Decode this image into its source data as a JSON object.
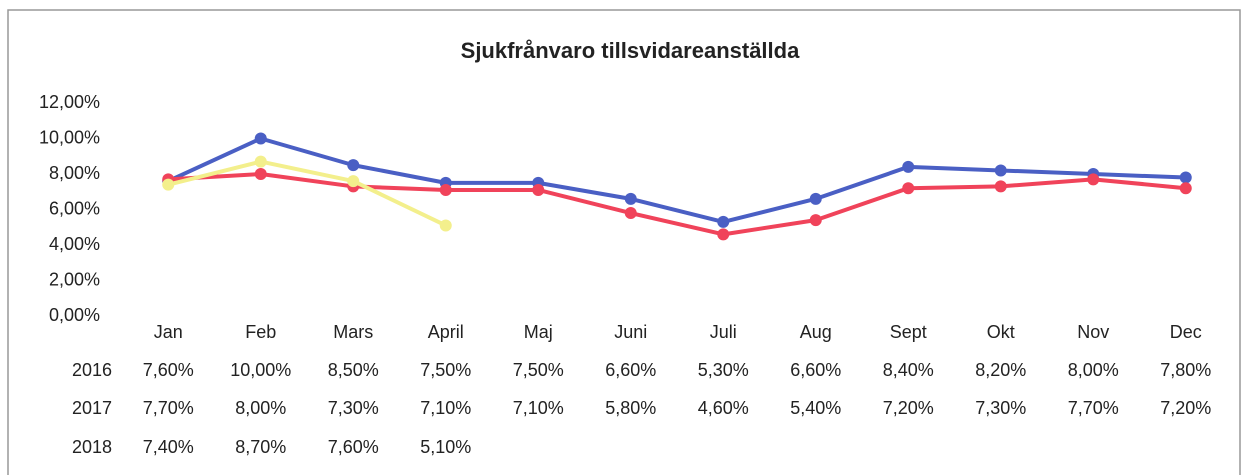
{
  "chart_data": {
    "type": "line",
    "title": "Sjukfrånvaro tillsvidareanställda",
    "categories": [
      "Jan",
      "Feb",
      "Mars",
      "April",
      "Maj",
      "Juni",
      "Juli",
      "Aug",
      "Sept",
      "Okt",
      "Nov",
      "Dec"
    ],
    "series": [
      {
        "name": "2016",
        "color": "#4a5fc4",
        "values": [
          7.6,
          10.0,
          8.5,
          7.5,
          7.5,
          6.6,
          5.3,
          6.6,
          8.4,
          8.2,
          8.0,
          7.8
        ],
        "value_labels": [
          "7,60%",
          "10,00%",
          "8,50%",
          "7,50%",
          "7,50%",
          "6,60%",
          "5,30%",
          "6,60%",
          "8,40%",
          "8,20%",
          "8,00%",
          "7,80%"
        ]
      },
      {
        "name": "2017",
        "color": "#f0435a",
        "values": [
          7.7,
          8.0,
          7.3,
          7.1,
          7.1,
          5.8,
          4.6,
          5.4,
          7.2,
          7.3,
          7.7,
          7.2
        ],
        "value_labels": [
          "7,70%",
          "8,00%",
          "7,30%",
          "7,10%",
          "7,10%",
          "5,80%",
          "4,60%",
          "5,40%",
          "7,20%",
          "7,30%",
          "7,70%",
          "7,20%"
        ]
      },
      {
        "name": "2018",
        "color": "#f3ef8c",
        "values": [
          7.4,
          8.7,
          7.6,
          5.1,
          null,
          null,
          null,
          null,
          null,
          null,
          null,
          null
        ],
        "value_labels": [
          "7,40%",
          "8,70%",
          "7,60%",
          "5,10%",
          null,
          null,
          null,
          null,
          null,
          null,
          null,
          null
        ]
      }
    ],
    "ylim": [
      0,
      12
    ],
    "yticks": [
      {
        "value": 0,
        "label": "0,00%"
      },
      {
        "value": 2,
        "label": "2,00%"
      },
      {
        "value": 4,
        "label": "4,00%"
      },
      {
        "value": 6,
        "label": "6,00%"
      },
      {
        "value": 8,
        "label": "8,00%"
      },
      {
        "value": 10,
        "label": "10,00%"
      },
      {
        "value": 12,
        "label": "12,00%"
      }
    ],
    "grid": false
  }
}
